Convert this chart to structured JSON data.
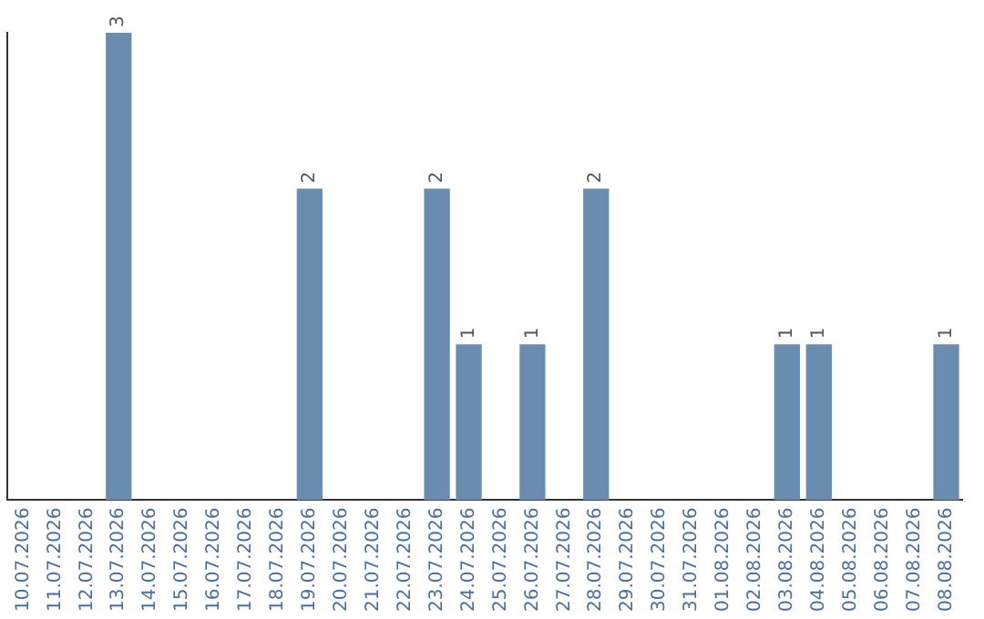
{
  "chart_data": {
    "type": "bar",
    "categories": [
      "10.07.2026",
      "11.07.2026",
      "12.07.2026",
      "13.07.2026",
      "14.07.2026",
      "15.07.2026",
      "16.07.2026",
      "17.07.2026",
      "18.07.2026",
      "19.07.2026",
      "20.07.2026",
      "21.07.2026",
      "22.07.2026",
      "23.07.2026",
      "24.07.2026",
      "25.07.2026",
      "26.07.2026",
      "27.07.2026",
      "28.07.2026",
      "29.07.2026",
      "30.07.2026",
      "31.07.2026",
      "01.08.2026",
      "02.08.2026",
      "03.08.2026",
      "04.08.2026",
      "05.08.2026",
      "06.08.2026",
      "07.08.2026",
      "08.08.2026"
    ],
    "values": [
      0,
      0,
      0,
      3,
      0,
      0,
      0,
      0,
      0,
      2,
      0,
      0,
      0,
      2,
      1,
      0,
      1,
      0,
      2,
      0,
      0,
      0,
      0,
      0,
      1,
      1,
      0,
      0,
      0,
      1
    ],
    "value_labels": [
      null,
      null,
      null,
      "3",
      null,
      null,
      null,
      null,
      null,
      "2",
      null,
      null,
      null,
      "2",
      "1",
      null,
      "1",
      null,
      "2",
      null,
      null,
      null,
      null,
      null,
      "1",
      "1",
      null,
      null,
      null,
      "1"
    ],
    "color": "#6a8caf",
    "grid": false,
    "legend": false,
    "tick_labels": "x"
  }
}
